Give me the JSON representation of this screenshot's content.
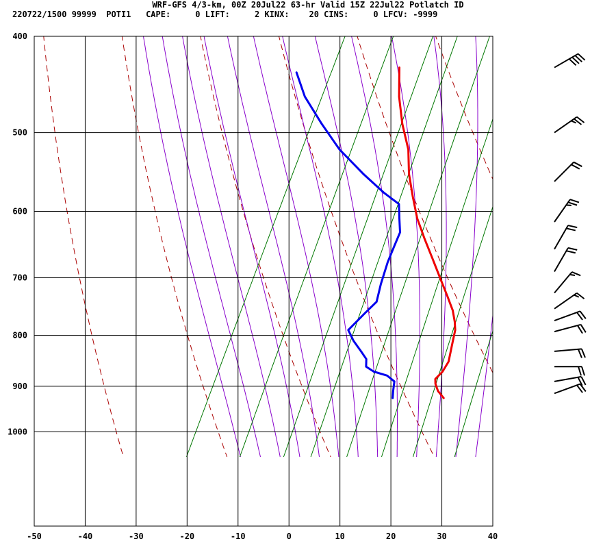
{
  "header": {
    "line1": "WRF-GFS 4/3-km, 00Z 20Jul22 63-hr Valid 15Z 22Jul22 Potlatch ID",
    "line2": "220722/1500 99999  POTI1   CAPE:     0 LIFT:     2 KINX:    20 CINS:     0 LFCV: -9999"
  },
  "colors": {
    "temperature": "#ee0000",
    "dewpoint": "#0000ee",
    "dry_adiabat": "#aa0000",
    "moist_adiabat": "#8800cc",
    "mixing_ratio": "#007700",
    "grid": "#000000"
  },
  "chart_data": {
    "type": "skew-t",
    "x_axis": {
      "min": -50,
      "max": 40,
      "ticks": [
        -50,
        -40,
        -30,
        -20,
        -10,
        0,
        10,
        20,
        30,
        40
      ]
    },
    "y_axis": {
      "scale": "log-pressure",
      "top": 400,
      "bottom": 1050,
      "ticks": [
        400,
        500,
        600,
        700,
        800,
        900,
        1000
      ]
    },
    "series": [
      {
        "key": "temperature",
        "points": [
          [
            -23.3,
            430
          ],
          [
            -20.5,
            460
          ],
          [
            -17.2,
            490
          ],
          [
            -13.5,
            520
          ],
          [
            -11.0,
            550
          ],
          [
            -8.0,
            580
          ],
          [
            -5.0,
            610
          ],
          [
            -1.5,
            640
          ],
          [
            2.0,
            670
          ],
          [
            5.3,
            700
          ],
          [
            8.5,
            730
          ],
          [
            11.0,
            755
          ],
          [
            12.5,
            775
          ],
          [
            13.4,
            790
          ],
          [
            14.0,
            810
          ],
          [
            14.6,
            830
          ],
          [
            15.2,
            850
          ],
          [
            15.0,
            870
          ],
          [
            14.3,
            885
          ],
          [
            14.8,
            895
          ],
          [
            16.0,
            910
          ],
          [
            17.8,
            925
          ]
        ]
      },
      {
        "key": "dewpoint",
        "points": [
          [
            -43.0,
            435
          ],
          [
            -39.0,
            460
          ],
          [
            -33.0,
            490
          ],
          [
            -27.0,
            520
          ],
          [
            -20.0,
            550
          ],
          [
            -14.0,
            575
          ],
          [
            -10.0,
            590
          ],
          [
            -8.5,
            610
          ],
          [
            -7.0,
            630
          ],
          [
            -6.8,
            650
          ],
          [
            -6.5,
            675
          ],
          [
            -5.7,
            710
          ],
          [
            -4.8,
            740
          ],
          [
            -6.0,
            760
          ],
          [
            -7.6,
            790
          ],
          [
            -5.5,
            810
          ],
          [
            -3.0,
            830
          ],
          [
            -1.2,
            845
          ],
          [
            -0.5,
            860
          ],
          [
            1.5,
            870
          ],
          [
            4.5,
            878
          ],
          [
            6.5,
            890
          ],
          [
            7.2,
            910
          ],
          [
            7.8,
            925
          ]
        ]
      }
    ],
    "dry_adiabats_thetaK": [
      230,
      250,
      270,
      290,
      310,
      330,
      350,
      370,
      390,
      410,
      430,
      450,
      470
    ],
    "moist_adiabats_thetaW_C": [
      -20,
      -16,
      -12,
      -8,
      -4,
      0,
      4,
      8,
      12,
      16,
      20,
      24,
      28,
      32,
      36,
      40
    ],
    "mixing_ratios_gkg": [
      0.4,
      1,
      2,
      3,
      5,
      8,
      12,
      20
    ],
    "wind_barbs": [
      {
        "p": 430,
        "dir": 240,
        "spd": 40
      },
      {
        "p": 500,
        "dir": 235,
        "spd": 25
      },
      {
        "p": 560,
        "dir": 225,
        "spd": 20
      },
      {
        "p": 615,
        "dir": 215,
        "spd": 25
      },
      {
        "p": 655,
        "dir": 210,
        "spd": 20
      },
      {
        "p": 690,
        "dir": 210,
        "spd": 20
      },
      {
        "p": 725,
        "dir": 220,
        "spd": 15
      },
      {
        "p": 752,
        "dir": 235,
        "spd": 15
      },
      {
        "p": 773,
        "dir": 250,
        "spd": 20
      },
      {
        "p": 793,
        "dir": 255,
        "spd": 20
      },
      {
        "p": 830,
        "dir": 265,
        "spd": 20
      },
      {
        "p": 860,
        "dir": 270,
        "spd": 20
      },
      {
        "p": 890,
        "dir": 260,
        "spd": 20
      },
      {
        "p": 915,
        "dir": 250,
        "spd": 20
      }
    ]
  }
}
